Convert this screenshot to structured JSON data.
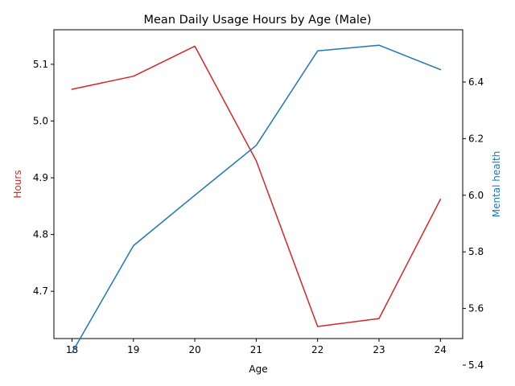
{
  "chart_data": {
    "type": "line",
    "title": "Mean Daily Usage Hours by Age (Male)",
    "xlabel": "Age",
    "x": [
      18,
      19,
      20,
      21,
      22,
      23,
      24
    ],
    "x_ticks": [
      "18",
      "19",
      "20",
      "21",
      "22",
      "23",
      "24"
    ],
    "y_left": {
      "label": "Hours",
      "color": "#d62728",
      "ticks": [
        4.7,
        4.8,
        4.9,
        5.0,
        5.1
      ],
      "tick_labels": [
        "4.7",
        "4.8",
        "4.9",
        "5.0",
        "5.1"
      ]
    },
    "y_right": {
      "label": "Mental health",
      "color": "#1f77b4",
      "ticks": [
        5.4,
        5.6,
        5.8,
        6.0,
        6.2,
        6.4
      ],
      "tick_labels": [
        "5.4",
        "5.6",
        "5.8",
        "6.0",
        "6.2",
        "6.4"
      ]
    },
    "series": [
      {
        "axis": "left",
        "color": "#d62728",
        "values": [
          5.056,
          5.079,
          5.132,
          4.93,
          4.638,
          4.652,
          4.862
        ]
      },
      {
        "axis": "right",
        "color": "#1f77b4",
        "values": [
          5.444,
          5.822,
          6.0,
          6.176,
          6.51,
          6.53,
          6.444
        ]
      }
    ],
    "grid": false,
    "legend": "none"
  }
}
